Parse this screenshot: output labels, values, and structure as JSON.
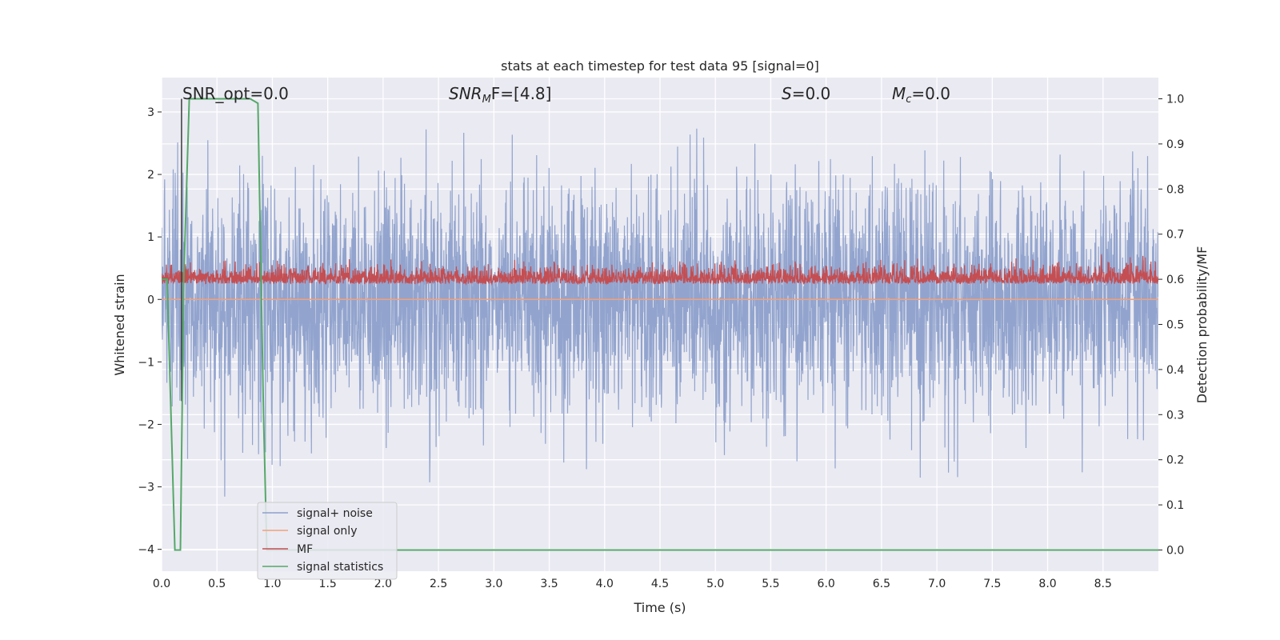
{
  "chart_data": {
    "type": "line",
    "title": "stats at each timestep for test data 95 [signal=0]",
    "xlabel": "Time (s)",
    "ylabel": "Whitened strain",
    "y2label": "Detection probability/MF",
    "xlim": [
      0.0,
      9.0
    ],
    "ylim": [
      -4.35,
      3.55
    ],
    "y2lim": [
      -0.047,
      1.047
    ],
    "xticks": [
      0.0,
      0.5,
      1.0,
      1.5,
      2.0,
      2.5,
      3.0,
      3.5,
      4.0,
      4.5,
      5.0,
      5.5,
      6.0,
      6.5,
      7.0,
      7.5,
      8.0,
      8.5
    ],
    "xtick_labels": [
      "0.0",
      "0.5",
      "1.0",
      "1.5",
      "2.0",
      "2.5",
      "3.0",
      "3.5",
      "4.0",
      "4.5",
      "5.0",
      "5.5",
      "6.0",
      "6.5",
      "7.0",
      "7.5",
      "8.0",
      "8.5"
    ],
    "yticks": [
      3,
      2,
      1,
      0,
      -1,
      -2,
      -3,
      -4
    ],
    "ytick_labels": [
      "3",
      "2",
      "1",
      "0",
      "−1",
      "−2",
      "−3",
      "−4"
    ],
    "y2ticks": [
      1.0,
      0.9,
      0.8,
      0.7,
      0.6,
      0.5,
      0.4,
      0.3,
      0.2,
      0.1,
      0.0
    ],
    "y2tick_labels": [
      "1.0",
      "0.9",
      "0.8",
      "0.7",
      "0.6",
      "0.5",
      "0.4",
      "0.3",
      "0.2",
      "0.1",
      "0.0"
    ],
    "grid": true,
    "legend_position": "lower-left",
    "annotations": {
      "snr_opt": "SNR_opt=0.0",
      "snr_mf_main": "SNR",
      "snr_mf_sub": "M",
      "snr_mf_rest": "F=[4.8]",
      "s_main": "S",
      "s_rest": "=0.0",
      "mc_main": "M",
      "mc_sub": "c",
      "mc_rest": "=0.0"
    },
    "series": [
      {
        "name": "signal+ noise",
        "color": "#8da0cb",
        "axis": "left",
        "kind": "noise",
        "amplitude_range": [
          -4.05,
          3.2
        ],
        "typical_sigma": 0.9
      },
      {
        "name": "signal only",
        "color": "#f2a07b",
        "axis": "left",
        "kind": "constant",
        "value": 0.0
      },
      {
        "name": "MF",
        "color": "#c44e52",
        "axis": "right",
        "kind": "noise",
        "range": [
          0.56,
          0.7
        ],
        "baseline": 0.6
      },
      {
        "name": "signal statistics",
        "color": "#55a868",
        "axis": "right",
        "kind": "line",
        "x": [
          0.0,
          0.05,
          0.12,
          0.17,
          0.2,
          0.25,
          0.8,
          0.87,
          0.92,
          0.95,
          9.0
        ],
        "y": [
          0.6,
          0.6,
          0.0,
          0.0,
          0.6,
          1.0,
          1.0,
          0.99,
          0.3,
          0.0,
          0.0
        ]
      }
    ],
    "marker_line": {
      "x": 0.18,
      "color": "#3b3b3b"
    }
  }
}
